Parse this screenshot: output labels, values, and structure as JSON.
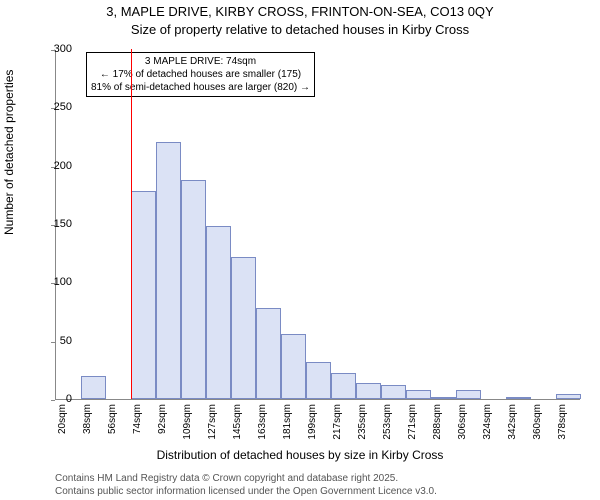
{
  "title_line1": "3, MAPLE DRIVE, KIRBY CROSS, FRINTON-ON-SEA, CO13 0QY",
  "title_line2": "Size of property relative to detached houses in Kirby Cross",
  "ylabel": "Number of detached properties",
  "xlabel": "Distribution of detached houses by size in Kirby Cross",
  "footer_line1": "Contains HM Land Registry data © Crown copyright and database right 2025.",
  "footer_line2": "Contains public sector information licensed under the Open Government Licence v3.0.",
  "chart": {
    "type": "histogram",
    "background_color": "#ffffff",
    "axis_color": "#888888",
    "bar_fill": "#dbe2f5",
    "bar_stroke": "#7a8bc4",
    "ylim": [
      0,
      300
    ],
    "ytick_step": 50,
    "yticks": [
      0,
      50,
      100,
      150,
      200,
      250,
      300
    ],
    "categories": [
      "20sqm",
      "38sqm",
      "56sqm",
      "74sqm",
      "92sqm",
      "109sqm",
      "127sqm",
      "145sqm",
      "163sqm",
      "181sqm",
      "199sqm",
      "217sqm",
      "235sqm",
      "253sqm",
      "271sqm",
      "288sqm",
      "306sqm",
      "324sqm",
      "342sqm",
      "360sqm",
      "378sqm"
    ],
    "values": [
      0,
      20,
      0,
      178,
      220,
      188,
      148,
      122,
      78,
      56,
      32,
      22,
      14,
      12,
      8,
      2,
      8,
      0,
      2,
      0,
      4
    ],
    "marker": {
      "color": "#ff0000",
      "x_label": "74sqm",
      "x_index": 3,
      "height_to_top": true
    },
    "annotation": {
      "lines": [
        "3 MAPLE DRIVE: 74sqm",
        "← 17% of detached houses are smaller (175)",
        "81% of semi-detached houses are larger (820) →"
      ],
      "border_color": "#000000",
      "bg_color": "#ffffff",
      "font_size": 10
    },
    "label_fontsize": 12,
    "tick_fontsize_x": 10,
    "tick_fontsize_y": 11
  }
}
